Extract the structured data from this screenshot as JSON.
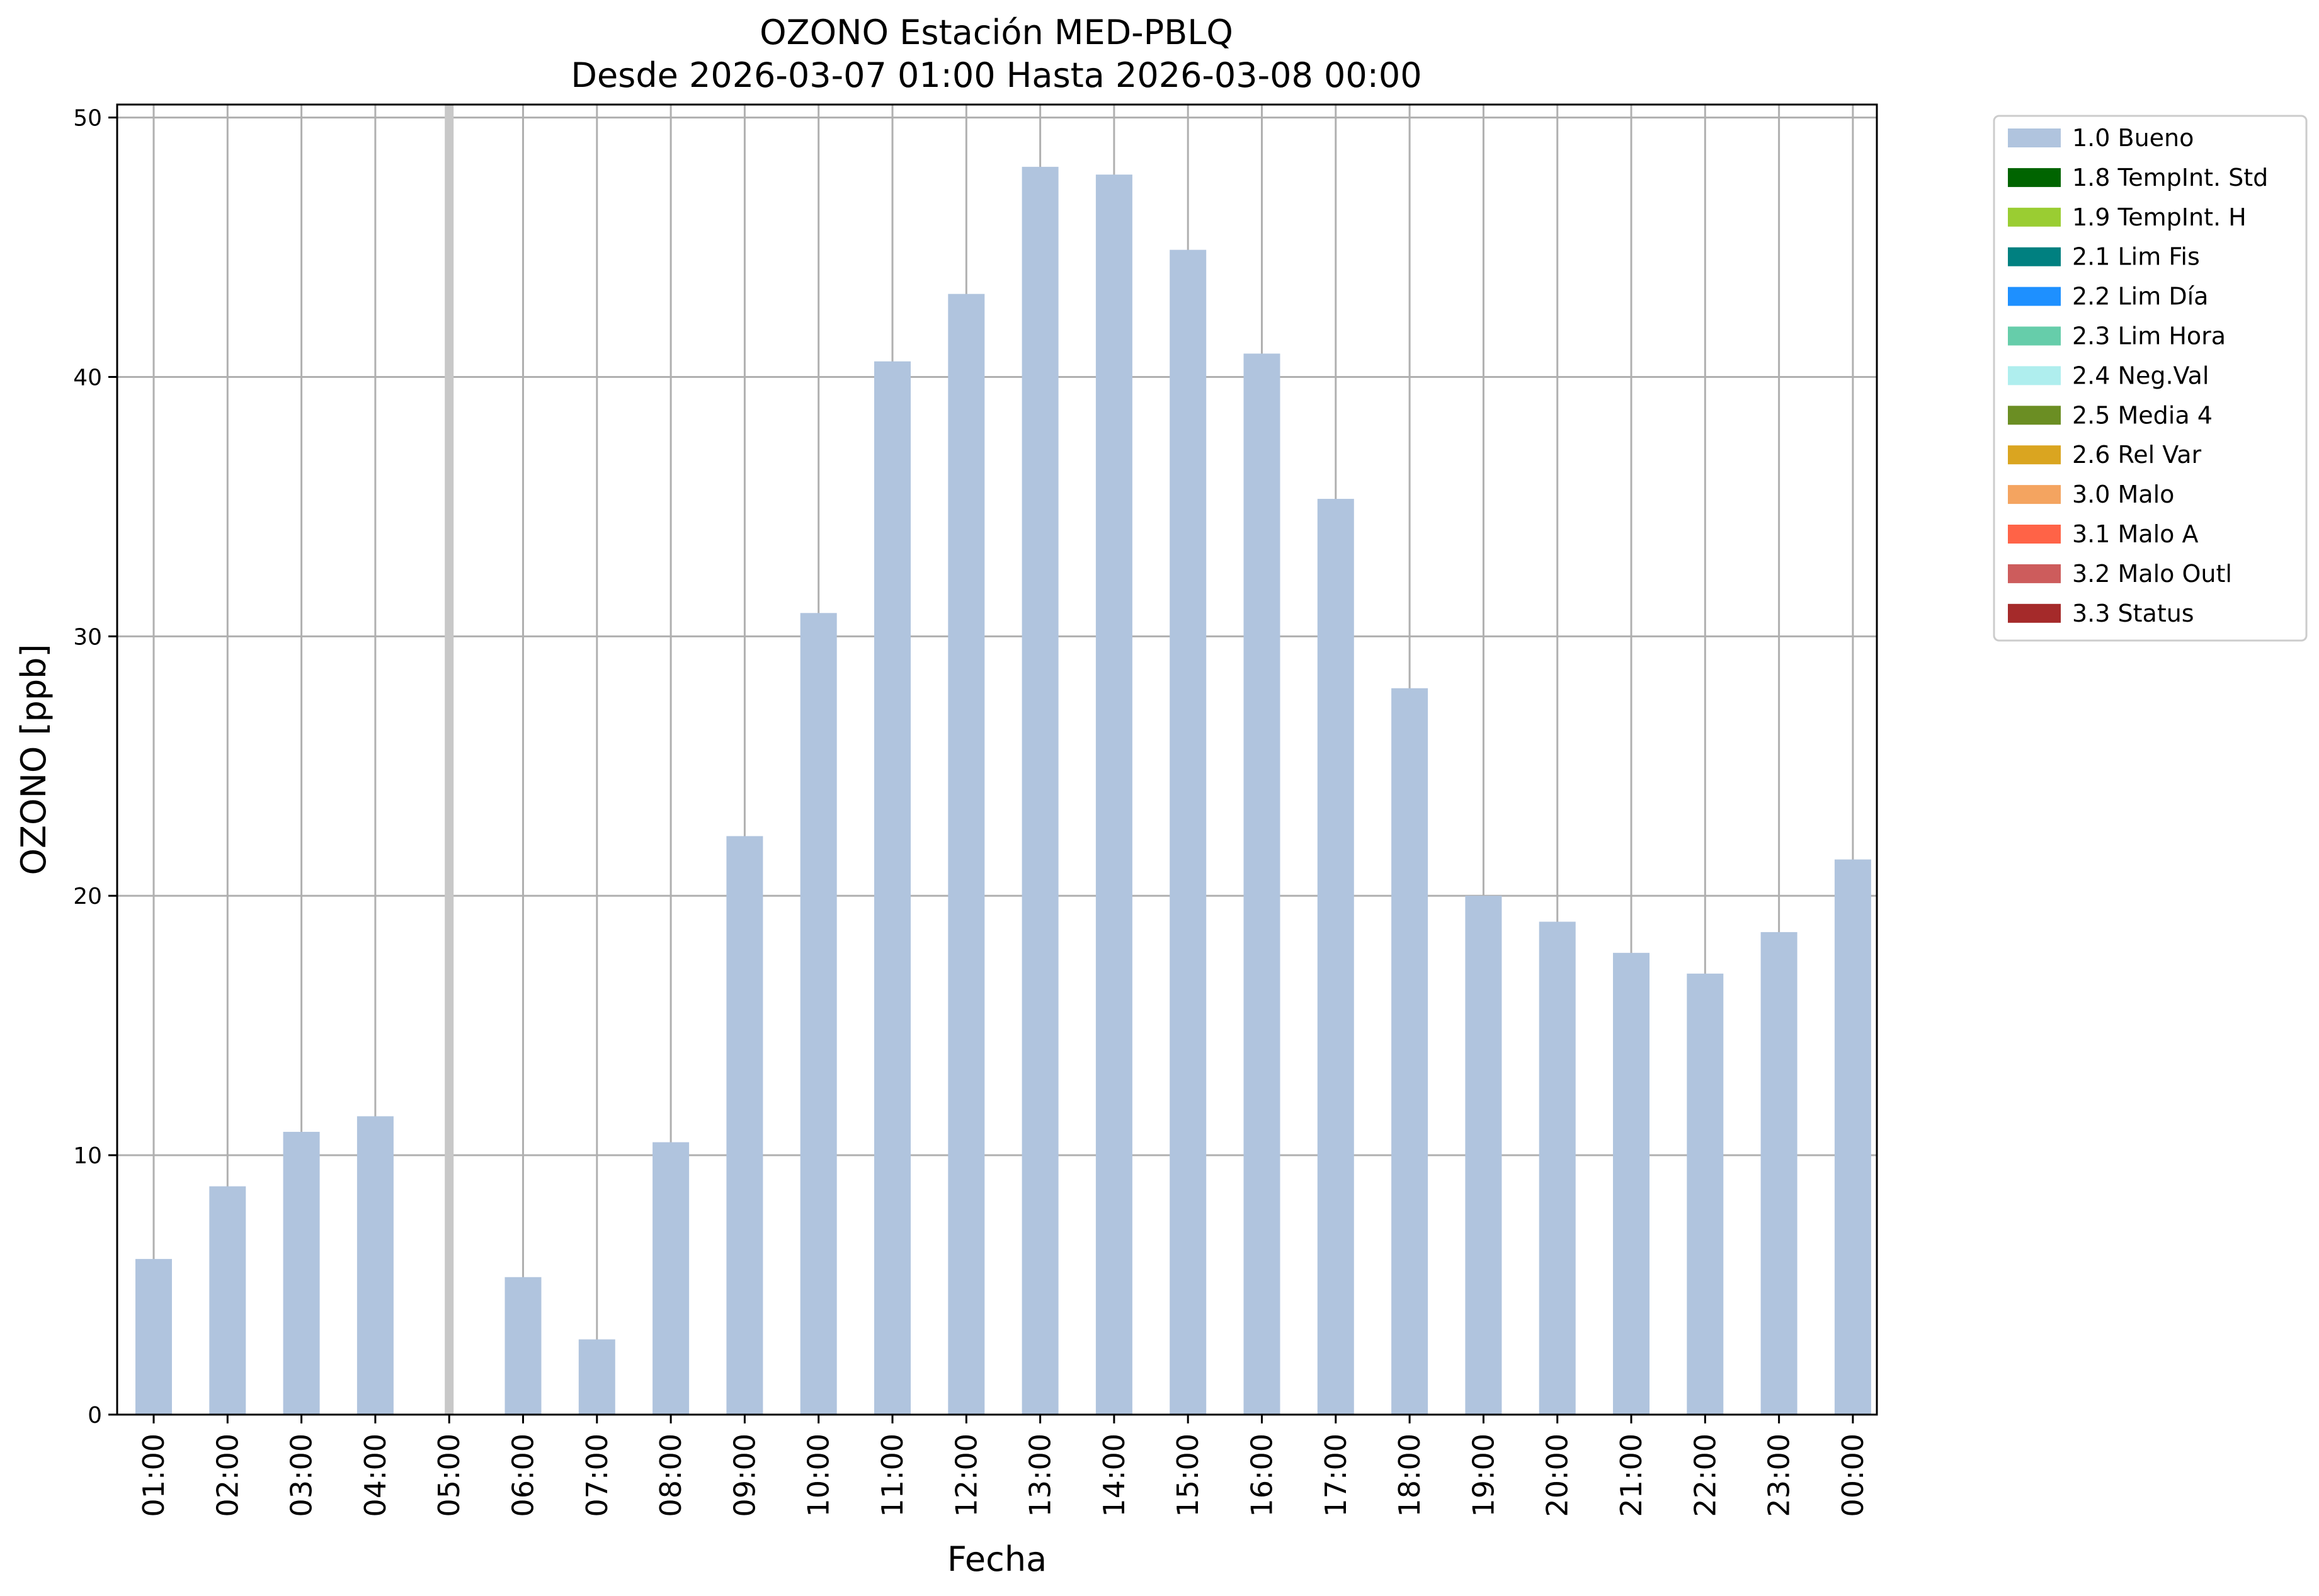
{
  "chart_data": {
    "type": "bar",
    "title": "OZONO Estación MED-PBLQ",
    "subtitle": "Desde 2026-03-07 01:00 Hasta 2026-03-08 00:00",
    "xlabel": "Fecha",
    "ylabel": "OZONO [ppb]",
    "categories": [
      "01:00",
      "02:00",
      "03:00",
      "04:00",
      "05:00",
      "06:00",
      "07:00",
      "08:00",
      "09:00",
      "10:00",
      "11:00",
      "12:00",
      "13:00",
      "14:00",
      "15:00",
      "16:00",
      "17:00",
      "18:00",
      "19:00",
      "20:00",
      "21:00",
      "22:00",
      "23:00",
      "00:00"
    ],
    "series": [
      {
        "name": "1.0 Bueno",
        "color": "#b0c4de",
        "values": [
          6.0,
          8.8,
          10.9,
          11.5,
          null,
          5.3,
          2.9,
          10.5,
          22.3,
          30.9,
          40.6,
          43.2,
          48.1,
          47.8,
          44.9,
          40.9,
          35.3,
          28.0,
          20.0,
          19.0,
          17.8,
          17.0,
          18.6,
          21.4
        ]
      }
    ],
    "missing_marker_category": "05:00",
    "ylim": [
      0,
      50.5
    ],
    "yticks": [
      0,
      10,
      20,
      30,
      40,
      50
    ],
    "grid": true,
    "legend_position": "outside-top-right",
    "legend": [
      {
        "label": "1.0 Bueno",
        "color": "#b0c4de"
      },
      {
        "label": "1.8 TempInt. Std",
        "color": "#006400"
      },
      {
        "label": "1.9 TempInt. H",
        "color": "#9acd32"
      },
      {
        "label": "2.1 Lim Fis",
        "color": "#008080"
      },
      {
        "label": "2.2 Lim Día",
        "color": "#1e90ff"
      },
      {
        "label": "2.3 Lim Hora",
        "color": "#66cdaa"
      },
      {
        "label": "2.4 Neg.Val",
        "color": "#afeeee"
      },
      {
        "label": "2.5 Media 4",
        "color": "#6b8e23"
      },
      {
        "label": "2.6 Rel Var",
        "color": "#daa520"
      },
      {
        "label": "3.0 Malo",
        "color": "#f4a460"
      },
      {
        "label": "3.1 Malo A",
        "color": "#ff6347"
      },
      {
        "label": "3.2 Malo Outl",
        "color": "#cd5c5c"
      },
      {
        "label": "3.3 Status",
        "color": "#a52a2a"
      }
    ]
  }
}
